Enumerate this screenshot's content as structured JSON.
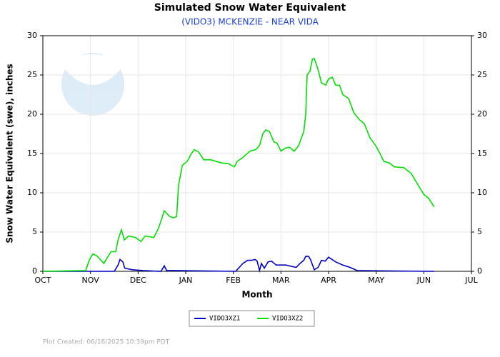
{
  "chart_data": {
    "type": "line",
    "title": "Simulated Snow Water Equivalent",
    "subtitle": "(VIDO3) MCKENZIE - NEAR VIDA",
    "x_label": "Month",
    "y_label": "Snow Water Equivalent (swe),  inches",
    "footer": "Plot Created: 06/16/2025 10:39pm PDT",
    "xlim": [
      0,
      9
    ],
    "xticks": [
      {
        "value": 0,
        "label": "OCT"
      },
      {
        "value": 1,
        "label": "NOV"
      },
      {
        "value": 2,
        "label": "DEC"
      },
      {
        "value": 3,
        "label": "JAN"
      },
      {
        "value": 4,
        "label": "FEB"
      },
      {
        "value": 5,
        "label": "MAR"
      },
      {
        "value": 6,
        "label": "APR"
      },
      {
        "value": 7,
        "label": "MAY"
      },
      {
        "value": 8,
        "label": "JUN"
      },
      {
        "value": 9,
        "label": "JUL"
      }
    ],
    "ylim": [
      0,
      30
    ],
    "yticks": [
      0,
      5,
      10,
      15,
      20,
      25,
      30
    ],
    "grid": true,
    "legend": "bottom",
    "series": [
      {
        "name": "VIDO3XZ1",
        "color": "#0000c0",
        "x": [
          0,
          1.5,
          1.58,
          1.62,
          1.68,
          1.72,
          1.88,
          2.1,
          2.48,
          2.55,
          2.6,
          2.7,
          4.05,
          4.2,
          4.3,
          4.38,
          4.46,
          4.5,
          4.55,
          4.59,
          4.65,
          4.73,
          4.8,
          4.9,
          5.1,
          5.32,
          5.4,
          5.48,
          5.52,
          5.58,
          5.62,
          5.7,
          5.78,
          5.85,
          5.93,
          6.0,
          6.15,
          6.3,
          6.45,
          6.6,
          8.1,
          8.22
        ],
        "values": [
          0,
          0,
          0.8,
          1.5,
          1.2,
          0.4,
          0.2,
          0.1,
          0,
          0.7,
          0.1,
          0.1,
          0,
          1,
          1.4,
          1.4,
          1.5,
          1.3,
          0.1,
          1,
          0.4,
          1.2,
          1.3,
          0.8,
          0.8,
          0.5,
          1,
          1.4,
          1.9,
          1.9,
          1.5,
          0.2,
          0.5,
          1.4,
          1.3,
          1.8,
          1.2,
          0.8,
          0.5,
          0.1,
          0,
          0
        ]
      },
      {
        "name": "VIDO3XZ2",
        "color": "#00e000",
        "x": [
          0,
          0.9,
          0.98,
          1.05,
          1.13,
          1.28,
          1.43,
          1.53,
          1.58,
          1.65,
          1.71,
          1.8,
          1.95,
          2.06,
          2.15,
          2.33,
          2.43,
          2.55,
          2.66,
          2.75,
          2.81,
          2.85,
          2.93,
          3.03,
          3.12,
          3.18,
          3.27,
          3.38,
          3.53,
          3.75,
          3.9,
          4.02,
          4.08,
          4.2,
          4.35,
          4.47,
          4.55,
          4.62,
          4.68,
          4.76,
          4.85,
          4.92,
          5.0,
          5.1,
          5.18,
          5.28,
          5.37,
          5.48,
          5.52,
          5.55,
          5.61,
          5.66,
          5.7,
          5.78,
          5.85,
          5.94,
          6.0,
          6.08,
          6.15,
          6.23,
          6.3,
          6.42,
          6.53,
          6.65,
          6.75,
          6.87,
          6.99,
          7.08,
          7.16,
          7.28,
          7.38,
          7.58,
          7.73,
          7.88,
          8.0,
          8.1,
          8.22
        ],
        "values": [
          0,
          0.1,
          1.5,
          2.2,
          2,
          1,
          2.5,
          2.5,
          4,
          5.3,
          4,
          4.5,
          4.3,
          3.8,
          4.5,
          4.3,
          5.5,
          7.7,
          7,
          6.8,
          7,
          11,
          13.5,
          14,
          15,
          15.5,
          15.2,
          14.2,
          14.2,
          13.8,
          13.7,
          13.3,
          14,
          14.5,
          15.3,
          15.5,
          16,
          17.5,
          18,
          17.8,
          16.5,
          16.3,
          15.3,
          15.7,
          15.8,
          15.3,
          16,
          17.8,
          20,
          25,
          25.5,
          27,
          27.1,
          25.7,
          24,
          23.7,
          24.5,
          24.7,
          23.7,
          23.7,
          22.5,
          22,
          20.2,
          19.3,
          18.8,
          17,
          16,
          15,
          14,
          13.8,
          13.3,
          13.2,
          12.5,
          11,
          9.8,
          9.3,
          8.2
        ]
      }
    ]
  }
}
